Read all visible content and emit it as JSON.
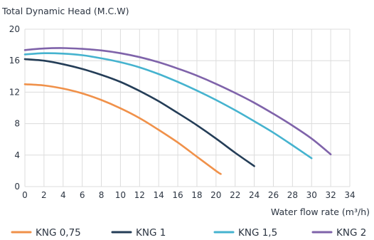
{
  "chart_data": {
    "type": "line",
    "title": "",
    "ylabel": "Total Dynamic Head (M.C.W)",
    "xlabel": "Water flow rate (m³/h)",
    "xlim": [
      0,
      34
    ],
    "ylim": [
      0,
      20
    ],
    "xticks": [
      0,
      2,
      4,
      6,
      8,
      10,
      12,
      14,
      16,
      18,
      20,
      22,
      24,
      26,
      28,
      30,
      32,
      34
    ],
    "yticks": [
      0,
      4,
      8,
      12,
      16,
      20
    ],
    "grid": true,
    "legend_position": "bottom",
    "series": [
      {
        "name": "KNG 0,75",
        "color": "#f0914a",
        "x": [
          0,
          2,
          4,
          6,
          8,
          10,
          12,
          14,
          16,
          18,
          20,
          20.5
        ],
        "y": [
          13.0,
          12.85,
          12.45,
          11.85,
          11.0,
          9.95,
          8.7,
          7.2,
          5.6,
          3.8,
          2.0,
          1.6
        ]
      },
      {
        "name": "KNG 1",
        "color": "#243d57",
        "x": [
          0,
          2,
          4,
          6,
          8,
          10,
          12,
          14,
          16,
          18,
          20,
          22,
          24
        ],
        "y": [
          16.2,
          16.0,
          15.55,
          14.95,
          14.2,
          13.3,
          12.15,
          10.85,
          9.35,
          7.8,
          6.1,
          4.3,
          2.6
        ]
      },
      {
        "name": "KNG 1,5",
        "color": "#45b3cf",
        "x": [
          0,
          2,
          4,
          6,
          8,
          10,
          12,
          14,
          16,
          18,
          20,
          22,
          24,
          26,
          28,
          30
        ],
        "y": [
          16.8,
          16.95,
          16.9,
          16.7,
          16.3,
          15.8,
          15.15,
          14.3,
          13.3,
          12.2,
          11.0,
          9.7,
          8.3,
          6.85,
          5.25,
          3.6
        ]
      },
      {
        "name": "KNG 2",
        "color": "#7f63aa",
        "x": [
          0,
          2,
          4,
          6,
          8,
          10,
          12,
          14,
          16,
          18,
          20,
          22,
          24,
          26,
          28,
          30,
          32
        ],
        "y": [
          17.35,
          17.55,
          17.6,
          17.5,
          17.3,
          16.95,
          16.45,
          15.8,
          15.0,
          14.1,
          13.05,
          11.9,
          10.65,
          9.25,
          7.75,
          6.1,
          4.1
        ]
      }
    ]
  }
}
